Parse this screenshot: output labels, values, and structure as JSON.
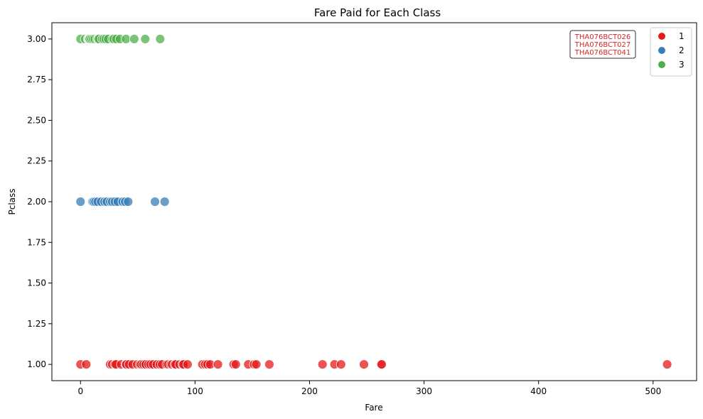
{
  "chart_data": {
    "type": "scatter",
    "title": "Fare Paid for Each Class",
    "xlabel": "Fare",
    "ylabel": "Pclass",
    "xlim": [
      -25,
      538
    ],
    "ylim": [
      0.9,
      3.1
    ],
    "xticks": [
      0,
      100,
      200,
      300,
      400,
      500
    ],
    "xtick_labels": [
      "0",
      "100",
      "200",
      "300",
      "400",
      "500"
    ],
    "yticks": [
      1.0,
      1.25,
      1.5,
      1.75,
      2.0,
      2.25,
      2.5,
      2.75,
      3.0
    ],
    "ytick_labels": [
      "1.00",
      "1.25",
      "1.50",
      "1.75",
      "2.00",
      "2.25",
      "2.50",
      "2.75",
      "3.00"
    ],
    "grid": false,
    "legend_position": "top-right",
    "annotation": {
      "lines": [
        "THA076BCT026",
        "THA076BCT027",
        "THA076BCT041"
      ],
      "color": "#d62728"
    },
    "series": [
      {
        "name": "1",
        "color": "#e41a1c",
        "y": 1,
        "x": [
          0,
          5,
          25.9,
          27.7,
          30,
          31,
          35.5,
          39.6,
          40,
          42.4,
          45.5,
          49.5,
          51.9,
          53.1,
          55,
          56.9,
          57,
          59.4,
          61.2,
          63.4,
          66.6,
          69.3,
          71.3,
          75.3,
          76.7,
          78.9,
          80,
          82.2,
          83.2,
          86.5,
          89.1,
          90,
          93.5,
          106.4,
          108.9,
          110.9,
          113.3,
          120,
          133.7,
          135.6,
          146.5,
          151.6,
          153.5,
          164.9,
          211.3,
          221.8,
          227.5,
          247.5,
          262.4,
          263,
          512.3
        ]
      },
      {
        "name": "2",
        "color": "#377eb8",
        "y": 2,
        "x": [
          0,
          10.5,
          11.5,
          13,
          15,
          18,
          21,
          23,
          26,
          27.7,
          30,
          32.5,
          36.8,
          39,
          41.6,
          65,
          73.5
        ]
      },
      {
        "name": "3",
        "color": "#4daf4a",
        "y": 3,
        "x": [
          0,
          4.0,
          6.5,
          7.25,
          7.75,
          8.05,
          9.5,
          11.1,
          12.5,
          14.5,
          15.5,
          16.1,
          18.8,
          20.2,
          22.0,
          24.15,
          27.9,
          29.1,
          31.3,
          34.4,
          39.7,
          46.9,
          56.5,
          69.55
        ]
      }
    ]
  }
}
